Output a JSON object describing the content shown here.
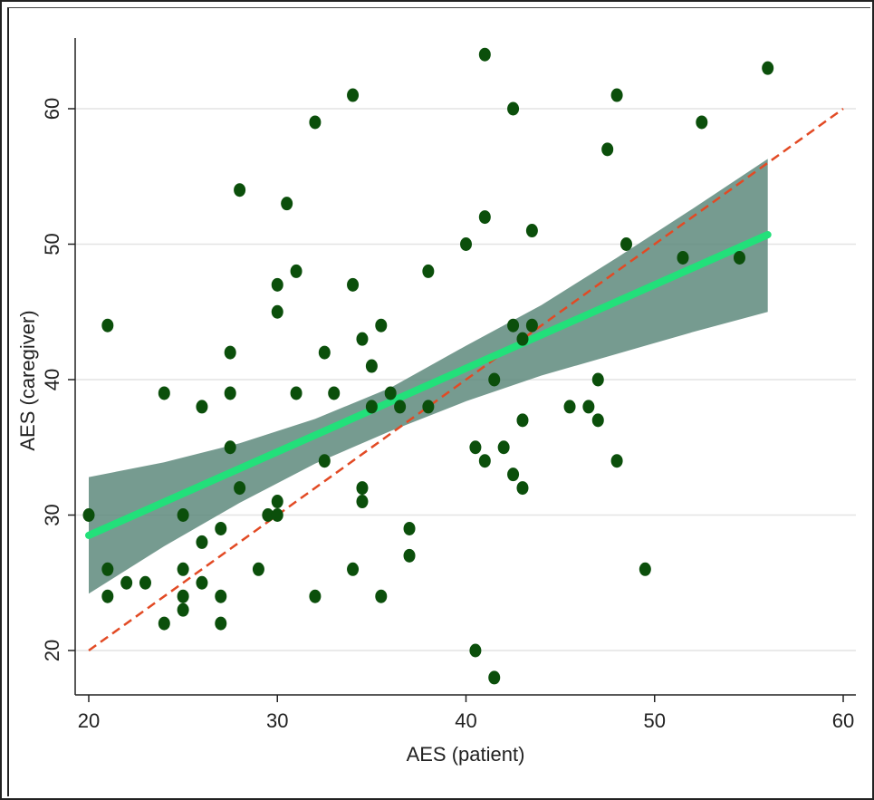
{
  "chart_data": {
    "type": "scatter",
    "xlabel": "AES (patient)",
    "ylabel": "AES (caregiver)",
    "xlim": [
      20,
      60
    ],
    "ylim": [
      17,
      65
    ],
    "x_ticks": [
      20,
      30,
      40,
      50,
      60
    ],
    "y_ticks": [
      20,
      30,
      40,
      50,
      60
    ],
    "grid": "horizontal",
    "colors": {
      "points": "#0b4f0b",
      "fit_line": "#22e07a",
      "confidence_band": "#5e8a7c",
      "identity_line": "#e24a24",
      "grid": "#e4e4e4",
      "axis": "#222222"
    },
    "points": [
      [
        20,
        30
      ],
      [
        21,
        44
      ],
      [
        21,
        26
      ],
      [
        21,
        24
      ],
      [
        22,
        25
      ],
      [
        23,
        25
      ],
      [
        24,
        39
      ],
      [
        24,
        22
      ],
      [
        25,
        30
      ],
      [
        25,
        26
      ],
      [
        25,
        24
      ],
      [
        25,
        23
      ],
      [
        26,
        38
      ],
      [
        26,
        28
      ],
      [
        26,
        25
      ],
      [
        27,
        29
      ],
      [
        27,
        24
      ],
      [
        27,
        22
      ],
      [
        27.5,
        42
      ],
      [
        27.5,
        39
      ],
      [
        27.5,
        35
      ],
      [
        28,
        54
      ],
      [
        28,
        32
      ],
      [
        29,
        26
      ],
      [
        29.5,
        30
      ],
      [
        30,
        47
      ],
      [
        30,
        45
      ],
      [
        30,
        31
      ],
      [
        30,
        30
      ],
      [
        30.5,
        53
      ],
      [
        31,
        48
      ],
      [
        31,
        39
      ],
      [
        32,
        59
      ],
      [
        32,
        24
      ],
      [
        32.5,
        42
      ],
      [
        32.5,
        34
      ],
      [
        33,
        39
      ],
      [
        34,
        61
      ],
      [
        34,
        47
      ],
      [
        34,
        26
      ],
      [
        34.5,
        43
      ],
      [
        34.5,
        32
      ],
      [
        34.5,
        31
      ],
      [
        35,
        41
      ],
      [
        35,
        38
      ],
      [
        35.5,
        44
      ],
      [
        35.5,
        24
      ],
      [
        36,
        39
      ],
      [
        36.5,
        38
      ],
      [
        37,
        29
      ],
      [
        37,
        27
      ],
      [
        38,
        48
      ],
      [
        38,
        38
      ],
      [
        40,
        50
      ],
      [
        40.5,
        35
      ],
      [
        40.5,
        20
      ],
      [
        41,
        64
      ],
      [
        41,
        52
      ],
      [
        41,
        34
      ],
      [
        41.5,
        40
      ],
      [
        41.5,
        18
      ],
      [
        42,
        35
      ],
      [
        42.5,
        60
      ],
      [
        42.5,
        44
      ],
      [
        42.5,
        33
      ],
      [
        43,
        43
      ],
      [
        43,
        37
      ],
      [
        43,
        32
      ],
      [
        43.5,
        51
      ],
      [
        43.5,
        44
      ],
      [
        45.5,
        38
      ],
      [
        46.5,
        38
      ],
      [
        47,
        40
      ],
      [
        47,
        37
      ],
      [
        47.5,
        57
      ],
      [
        48,
        61
      ],
      [
        48,
        34
      ],
      [
        48.5,
        50
      ],
      [
        49.5,
        26
      ],
      [
        51.5,
        49
      ],
      [
        52.5,
        59
      ],
      [
        54.5,
        49
      ],
      [
        56,
        63
      ]
    ],
    "fit": {
      "x": [
        20,
        56
      ],
      "y": [
        28.5,
        50.7
      ]
    },
    "confidence_band": {
      "x": [
        20,
        24,
        28,
        32,
        36,
        40,
        44,
        48,
        52,
        56
      ],
      "lower": [
        24.2,
        27.7,
        30.9,
        33.8,
        36.2,
        38.4,
        40.3,
        41.9,
        43.5,
        45.0
      ],
      "upper": [
        32.8,
        33.9,
        35.3,
        37.1,
        39.4,
        42.5,
        45.5,
        49.0,
        52.6,
        56.3
      ]
    },
    "identity_line": {
      "x": [
        20,
        60
      ],
      "y": [
        20,
        60
      ]
    }
  }
}
